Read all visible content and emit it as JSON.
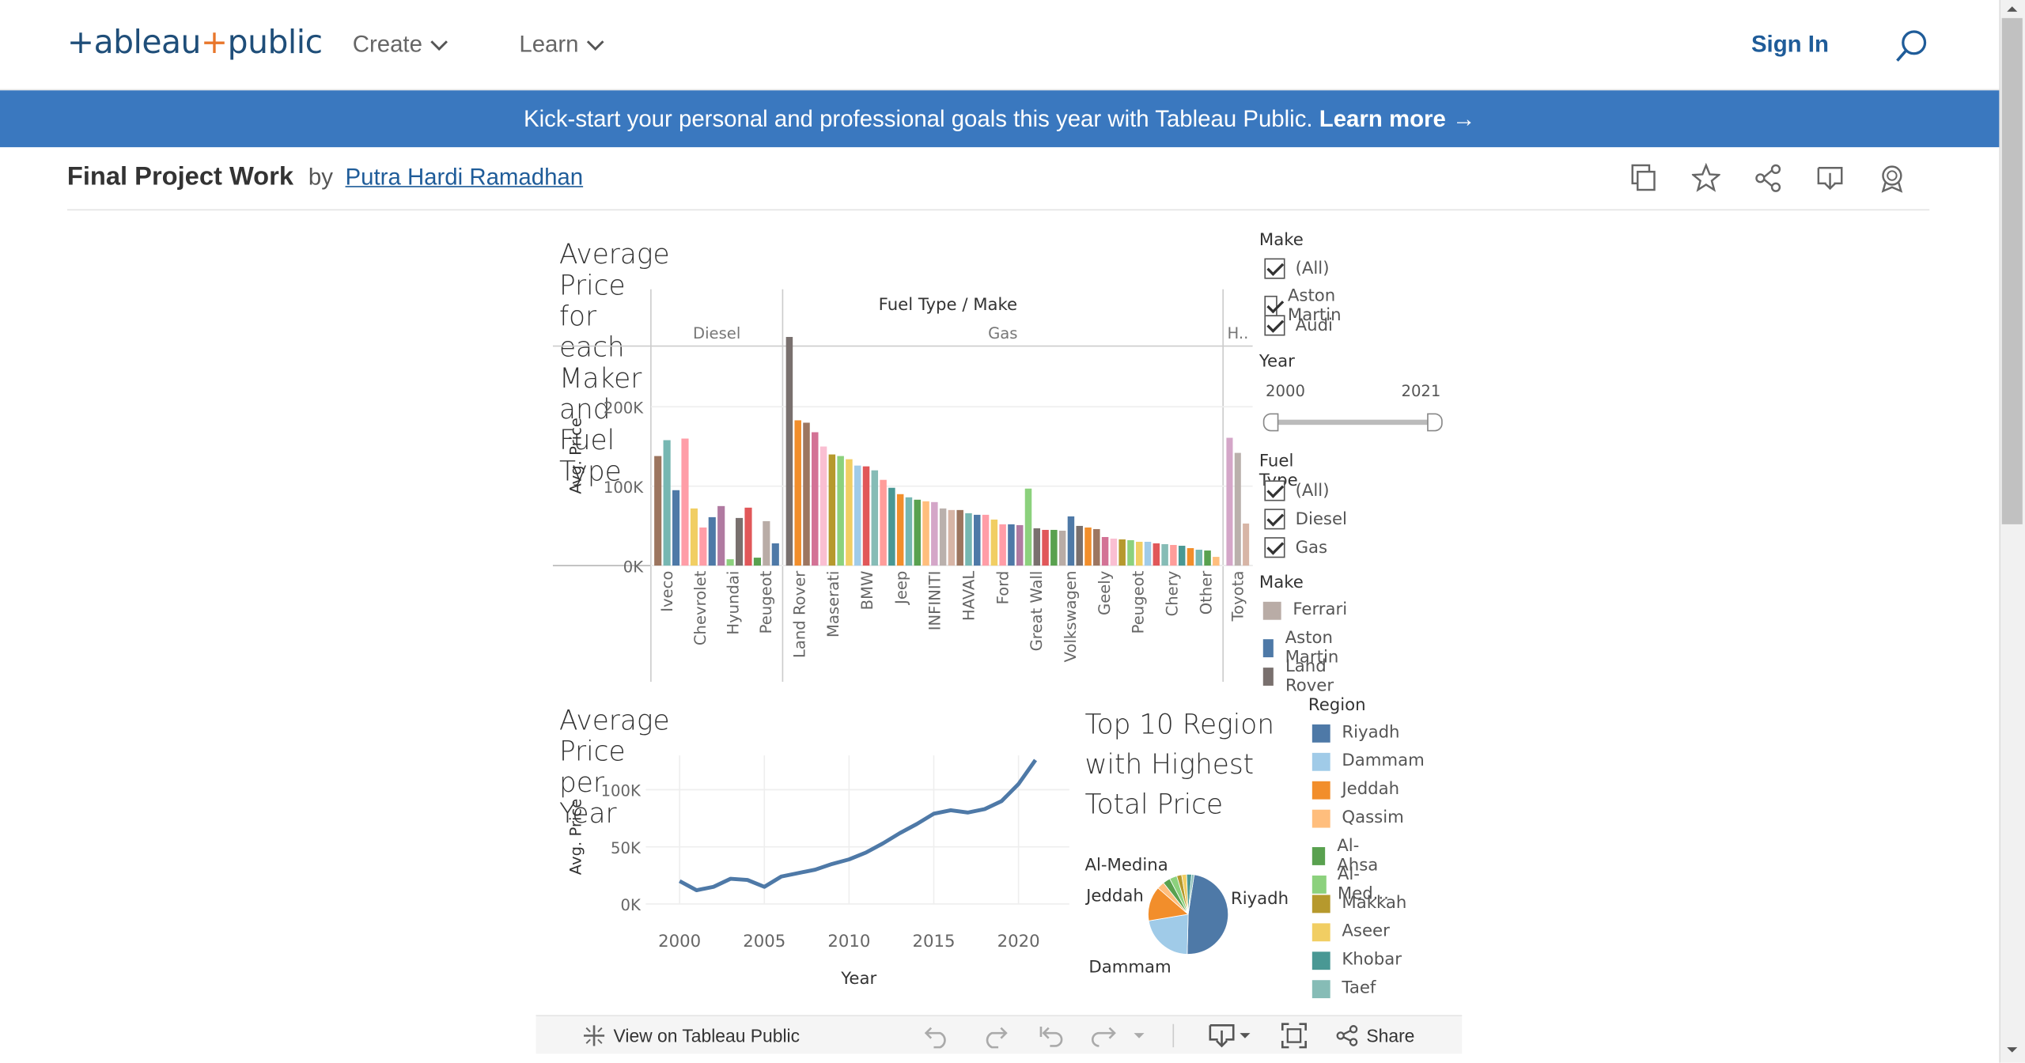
{
  "nav": {
    "logo_left": "+ableau",
    "logo_plus": "+",
    "logo_right": "public",
    "create": "Create",
    "learn": "Learn",
    "sign_in": "Sign In"
  },
  "banner": {
    "text": "Kick-start your personal and professional goals this year with Tableau Public. ",
    "link": "Learn more →"
  },
  "workbook": {
    "title": "Final Project Work",
    "by": "by",
    "author": "Putra Hardi Ramadhan"
  },
  "filters": {
    "make_title": "Make",
    "make_options": [
      "(All)",
      "Aston Martin",
      "Audi"
    ],
    "year_title": "Year",
    "year_min": "2000",
    "year_max": "2021",
    "fuel_title": "Fuel Type",
    "fuel_options": [
      "(All)",
      "Diesel",
      "Gas"
    ],
    "make_legend_title": "Make",
    "make_legend": [
      {
        "label": "Ferrari",
        "color": "#b9aca6"
      },
      {
        "label": "Aston Martin",
        "color": "#4e79a7"
      },
      {
        "label": "Land Rover",
        "color": "#79706e"
      }
    ],
    "region_title": "Region",
    "regions": [
      {
        "label": "Riyadh",
        "color": "#4e79a7"
      },
      {
        "label": "Dammam",
        "color": "#a0cbe8"
      },
      {
        "label": "Jeddah",
        "color": "#f28e2b"
      },
      {
        "label": "Qassim",
        "color": "#ffbe7d"
      },
      {
        "label": "Al-Ahsa",
        "color": "#59a14f"
      },
      {
        "label": "Al-Med...",
        "color": "#8cd17d"
      },
      {
        "label": "Makkah",
        "color": "#b6992d"
      },
      {
        "label": "Aseer",
        "color": "#f1ce63"
      },
      {
        "label": "Khobar",
        "color": "#499894"
      },
      {
        "label": "Taef",
        "color": "#86bcb6"
      }
    ]
  },
  "bottom_bar": {
    "view": "View on Tableau Public",
    "share": "Share"
  },
  "chart_data": [
    {
      "type": "bar",
      "title": "Average Price for each Maker and Fuel Type",
      "header": "Fuel Type / Make",
      "ylabel": "Avg. Price",
      "ylim": [
        0,
        270000
      ],
      "yticks": [
        "0K",
        "100K",
        "200K"
      ],
      "panes": [
        {
          "name": "Diesel",
          "labels": [
            "Iveco",
            "Chevrolet",
            "Hyundai",
            "Peugeot"
          ]
        },
        {
          "name": "Gas",
          "labels": [
            "Land Rover",
            "Maserati",
            "BMW",
            "Jeep",
            "INFINITI",
            "HAVAL",
            "Ford",
            "Great Wall",
            "Volkswagen",
            "Geely",
            "Peugeot",
            "Chery",
            "Other"
          ]
        },
        {
          "name": "H..",
          "labels": [
            "Toyota"
          ]
        }
      ],
      "series": [
        {
          "pane": "Diesel",
          "values": [
            138000,
            158000,
            95000,
            160000,
            72000,
            48000,
            61000,
            75000,
            8000,
            60000,
            73000,
            10000,
            56000,
            28000
          ]
        },
        {
          "pane": "Gas",
          "values": [
            288000,
            183000,
            180000,
            168000,
            150000,
            140000,
            138000,
            134000,
            126000,
            125000,
            120000,
            108000,
            98000,
            90000,
            86000,
            83000,
            81000,
            80000,
            72000,
            70000,
            70000,
            66000,
            64000,
            64000,
            58000,
            52000,
            52000,
            51000,
            97000,
            47000,
            45000,
            45000,
            44000,
            62000,
            50000,
            48000,
            46000,
            36000,
            34000,
            33000,
            32000,
            30000,
            30000,
            28000,
            27000,
            26000,
            25000,
            22000,
            20000,
            19000,
            11000
          ]
        },
        {
          "pane": "H..",
          "values": [
            161000,
            142000,
            53000
          ]
        }
      ]
    },
    {
      "type": "line",
      "title": "Average Price per Year",
      "xlabel": "Year",
      "ylabel": "Avg. Price",
      "ylim": [
        0,
        130000
      ],
      "xlim": [
        1998,
        2023
      ],
      "yticks": [
        "0K",
        "50K",
        "100K"
      ],
      "xticks": [
        "2000",
        "2005",
        "2010",
        "2015",
        "2020"
      ],
      "x": [
        2000,
        2001,
        2002,
        2003,
        2004,
        2005,
        2006,
        2007,
        2008,
        2009,
        2010,
        2011,
        2012,
        2013,
        2014,
        2015,
        2016,
        2017,
        2018,
        2019,
        2020,
        2021
      ],
      "values": [
        20000,
        12000,
        15000,
        22000,
        21000,
        15000,
        24000,
        27000,
        30000,
        35000,
        39000,
        45000,
        53000,
        62000,
        70000,
        79000,
        82000,
        80000,
        83000,
        90000,
        105000,
        126000
      ]
    },
    {
      "type": "pie",
      "title": "Top 10 Region with Highest Total Price",
      "annotations": [
        "Riyadh",
        "Jeddah",
        "Al-Medina",
        "Dammam"
      ],
      "categories": [
        "Riyadh",
        "Dammam",
        "Jeddah",
        "Qassim",
        "Al-Ahsa",
        "Al-Med...",
        "Makkah",
        "Aseer",
        "Khobar",
        "Taef"
      ],
      "values": [
        48,
        22,
        14,
        3,
        3,
        3,
        2,
        2,
        2,
        1
      ]
    }
  ]
}
